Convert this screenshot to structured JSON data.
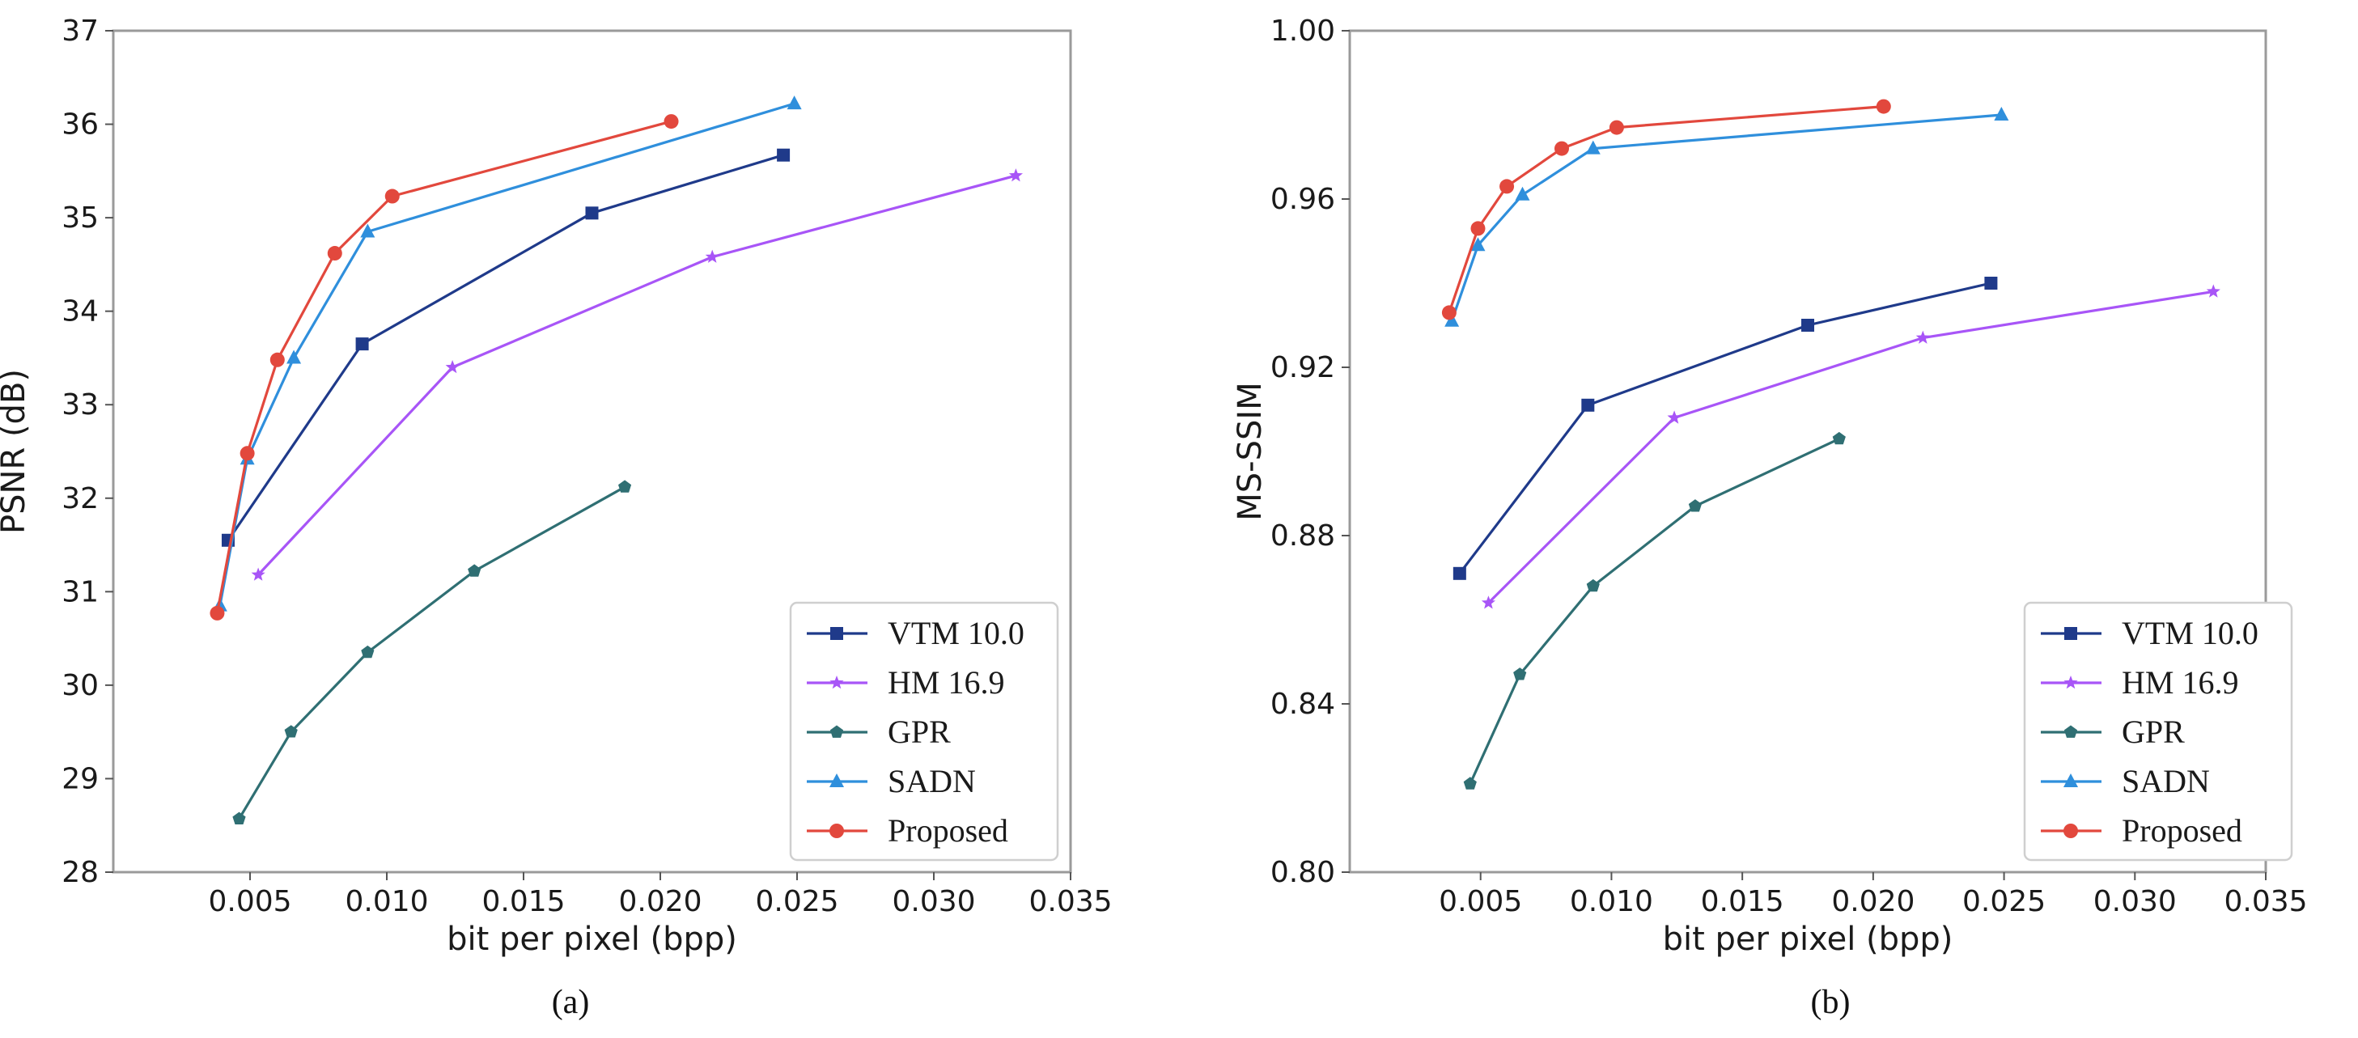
{
  "colors": {
    "VTM 10.0": "#1f3a8a",
    "HM 16.9": "#a855f7",
    "GPR": "#2f6f73",
    "SADN": "#2f8fdc",
    "Proposed": "#e2483d"
  },
  "chart_data": [
    {
      "type": "line",
      "caption": "(a)",
      "xlabel": "bit per pixel (bpp)",
      "ylabel": "PSNR (dB)",
      "xlim": [
        0.0,
        0.035
      ],
      "ylim": [
        28,
        37
      ],
      "xticks": [
        "0.005",
        "0.010",
        "0.015",
        "0.020",
        "0.025",
        "0.030",
        "0.035"
      ],
      "xtick_values": [
        0.005,
        0.01,
        0.015,
        0.02,
        0.025,
        0.03,
        0.035
      ],
      "yticks": [
        "28",
        "29",
        "30",
        "31",
        "32",
        "33",
        "34",
        "35",
        "36",
        "37"
      ],
      "ytick_values": [
        28,
        29,
        30,
        31,
        32,
        33,
        34,
        35,
        36,
        37
      ],
      "legend_position": "lower-right",
      "series": [
        {
          "name": "VTM 10.0",
          "marker": "square",
          "x": [
            0.0042,
            0.0091,
            0.0175,
            0.0245
          ],
          "y": [
            31.55,
            33.65,
            35.05,
            35.67
          ]
        },
        {
          "name": "HM 16.9",
          "marker": "star",
          "x": [
            0.0053,
            0.0124,
            0.0219,
            0.033
          ],
          "y": [
            31.18,
            33.4,
            34.58,
            35.45
          ]
        },
        {
          "name": "GPR",
          "marker": "pentagon",
          "x": [
            0.0046,
            0.0065,
            0.0093,
            0.0132,
            0.0187
          ],
          "y": [
            28.57,
            29.5,
            30.35,
            31.22,
            32.12
          ]
        },
        {
          "name": "SADN",
          "marker": "triangle",
          "x": [
            0.0039,
            0.0049,
            0.0066,
            0.0093,
            0.0249
          ],
          "y": [
            30.85,
            32.42,
            33.5,
            34.85,
            36.22
          ]
        },
        {
          "name": "Proposed",
          "marker": "circle",
          "x": [
            0.0038,
            0.0049,
            0.006,
            0.0081,
            0.0102,
            0.0204
          ],
          "y": [
            30.77,
            32.48,
            33.48,
            34.62,
            35.23,
            36.03
          ]
        }
      ]
    },
    {
      "type": "line",
      "caption": "(b)",
      "xlabel": "bit per pixel (bpp)",
      "ylabel": "MS-SSIM",
      "xlim": [
        0.0,
        0.035
      ],
      "ylim": [
        0.8,
        1.0
      ],
      "xticks": [
        "0.005",
        "0.010",
        "0.015",
        "0.020",
        "0.025",
        "0.030",
        "0.035"
      ],
      "xtick_values": [
        0.005,
        0.01,
        0.015,
        0.02,
        0.025,
        0.03,
        0.035
      ],
      "yticks": [
        "0.80",
        "0.84",
        "0.88",
        "0.92",
        "0.96",
        "1.00"
      ],
      "ytick_values": [
        0.8,
        0.84,
        0.88,
        0.92,
        0.96,
        1.0
      ],
      "legend_position": "lower-right",
      "series": [
        {
          "name": "VTM 10.0",
          "marker": "square",
          "x": [
            0.0042,
            0.0091,
            0.0175,
            0.0245
          ],
          "y": [
            0.871,
            0.911,
            0.93,
            0.94
          ]
        },
        {
          "name": "HM 16.9",
          "marker": "star",
          "x": [
            0.0053,
            0.0124,
            0.0219,
            0.033
          ],
          "y": [
            0.864,
            0.908,
            0.927,
            0.938
          ]
        },
        {
          "name": "GPR",
          "marker": "pentagon",
          "x": [
            0.0046,
            0.0065,
            0.0093,
            0.0132,
            0.0187
          ],
          "y": [
            0.821,
            0.847,
            0.868,
            0.887,
            0.903
          ]
        },
        {
          "name": "SADN",
          "marker": "triangle",
          "x": [
            0.0039,
            0.0049,
            0.0066,
            0.0093,
            0.0249
          ],
          "y": [
            0.931,
            0.949,
            0.961,
            0.972,
            0.98
          ]
        },
        {
          "name": "Proposed",
          "marker": "circle",
          "x": [
            0.0038,
            0.0049,
            0.006,
            0.0081,
            0.0102,
            0.0204
          ],
          "y": [
            0.933,
            0.953,
            0.963,
            0.972,
            0.977,
            0.982
          ]
        }
      ]
    }
  ]
}
